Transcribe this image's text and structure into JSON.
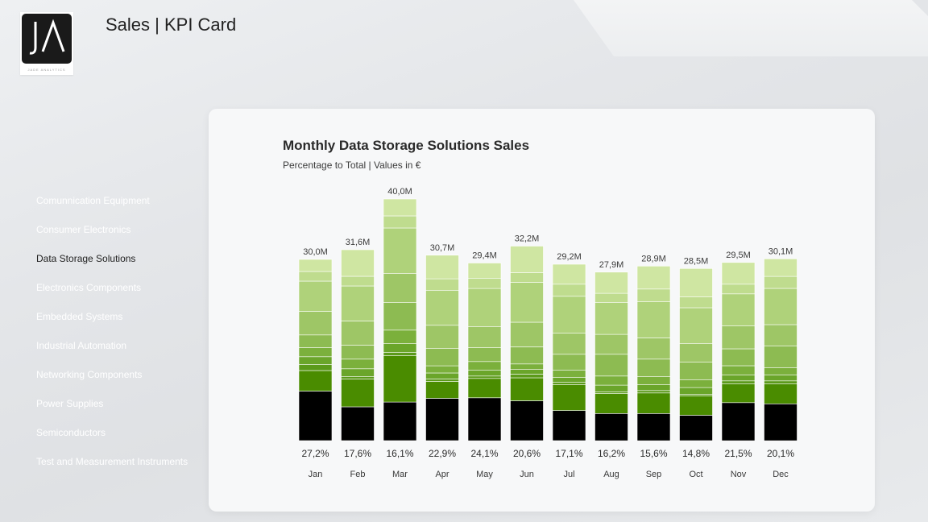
{
  "header": {
    "title": "Sales | KPI Card"
  },
  "logo": {
    "text": "JA",
    "caption": "JADE ANALYTICS",
    "icon": "ja-logo-icon"
  },
  "sidebar": {
    "items": [
      {
        "label": "Comunnication Equipment",
        "active": false
      },
      {
        "label": "Consumer Electronics",
        "active": false
      },
      {
        "label": "Data Storage Solutions",
        "active": true
      },
      {
        "label": "Electronics Components",
        "active": false
      },
      {
        "label": "Embedded Systems",
        "active": false
      },
      {
        "label": "Industrial Automation",
        "active": false
      },
      {
        "label": "Networking Components",
        "active": false
      },
      {
        "label": "Power Supplies",
        "active": false
      },
      {
        "label": "Semiconductors",
        "active": false
      },
      {
        "label": "Test and Measurement Instruments",
        "active": false
      }
    ]
  },
  "chart_data": {
    "type": "bar",
    "stacked": true,
    "title": "Monthly Data Storage Solutions Sales",
    "subtitle": "Percentage to Total | Values in €",
    "categories": [
      "Jan",
      "Feb",
      "Mar",
      "Apr",
      "May",
      "Jun",
      "Jul",
      "Aug",
      "Sep",
      "Oct",
      "Nov",
      "Dec"
    ],
    "totals": [
      30.0,
      31.6,
      40.0,
      30.7,
      29.4,
      32.2,
      29.2,
      27.9,
      28.9,
      28.5,
      29.5,
      30.1
    ],
    "total_labels": [
      "30,0M",
      "31,6M",
      "40,0M",
      "30,7M",
      "29,4M",
      "32,2M",
      "29,2M",
      "27,9M",
      "28,9M",
      "28,5M",
      "29,5M",
      "30,1M"
    ],
    "highlight_share_labels": [
      "27,2%",
      "17,6%",
      "16,1%",
      "22,9%",
      "24,1%",
      "20,6%",
      "17,1%",
      "16,2%",
      "15,6%",
      "14,8%",
      "21,5%",
      "20,1%"
    ],
    "segment_colors": [
      "#000000",
      "#4a8c00",
      "#5b9a1a",
      "#6aa52a",
      "#7bb03c",
      "#8dbb52",
      "#9ec666",
      "#afd27a",
      "#bfdc8e",
      "#cfe6a2"
    ],
    "segments": [
      [
        8.2,
        3.4,
        1.0,
        1.3,
        1.5,
        2.1,
        3.9,
        5.0,
        1.6,
        2.0
      ],
      [
        5.6,
        4.6,
        0.4,
        1.3,
        1.6,
        2.3,
        4.0,
        5.8,
        1.6,
        4.4
      ],
      [
        6.4,
        7.7,
        0.5,
        1.5,
        2.2,
        4.6,
        4.8,
        7.5,
        2.0,
        2.8
      ],
      [
        7.0,
        2.8,
        0.4,
        1.0,
        1.2,
        2.9,
        3.8,
        5.8,
        1.9,
        3.9
      ],
      [
        7.1,
        3.2,
        0.4,
        1.0,
        1.4,
        2.3,
        3.5,
        6.3,
        1.7,
        2.5
      ],
      [
        6.6,
        3.8,
        0.6,
        0.8,
        0.9,
        2.8,
        4.1,
        6.6,
        1.6,
        4.4
      ],
      [
        5.0,
        4.3,
        0.4,
        0.8,
        1.2,
        2.6,
        3.5,
        6.1,
        2.0,
        3.3
      ],
      [
        4.5,
        3.3,
        0.3,
        1.1,
        1.5,
        3.6,
        3.3,
        5.3,
        1.5,
        3.5
      ],
      [
        4.5,
        3.4,
        0.4,
        1.0,
        1.3,
        2.9,
        3.5,
        6.0,
        2.1,
        3.8
      ],
      [
        4.2,
        3.2,
        0.3,
        1.1,
        1.3,
        2.9,
        3.1,
        5.9,
        1.8,
        4.7
      ],
      [
        6.3,
        3.1,
        0.5,
        1.0,
        1.5,
        2.8,
        3.8,
        5.3,
        1.6,
        3.6
      ],
      [
        6.1,
        3.3,
        0.5,
        1.0,
        1.2,
        3.6,
        3.5,
        6.0,
        2.0,
        2.9
      ]
    ]
  }
}
